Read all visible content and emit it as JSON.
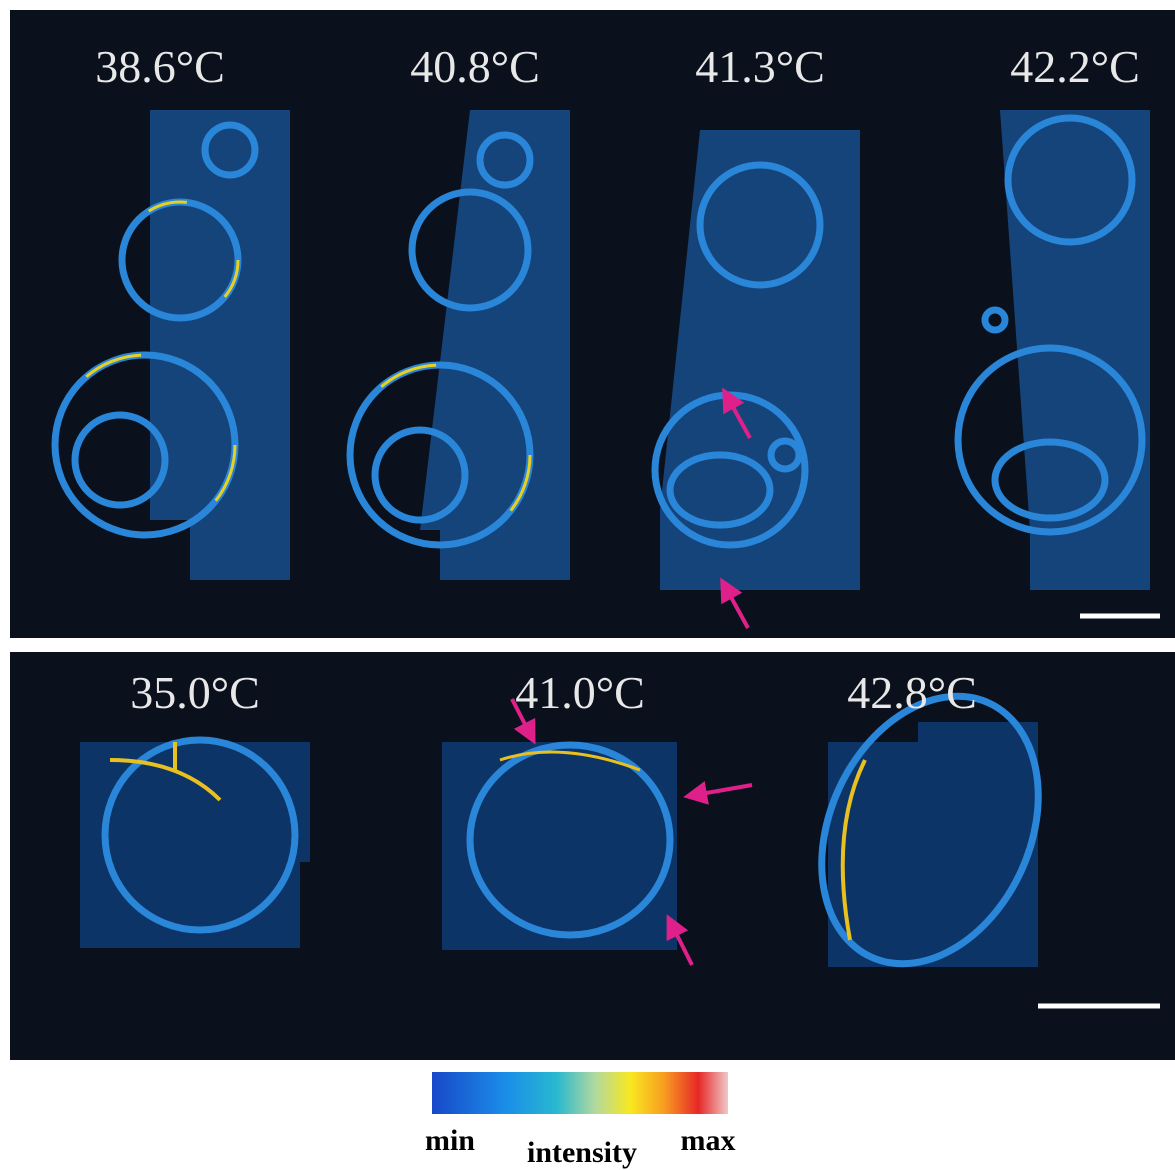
{
  "top_panel": {
    "labels": [
      "38.6°C",
      "40.8°C",
      "41.3°C",
      "42.2°C"
    ]
  },
  "bottom_panel": {
    "labels": [
      "35.0°C",
      "41.0°C",
      "42.8°C"
    ]
  },
  "colorbar": {
    "min_label": "min",
    "title": "intensity",
    "max_label": "max"
  }
}
